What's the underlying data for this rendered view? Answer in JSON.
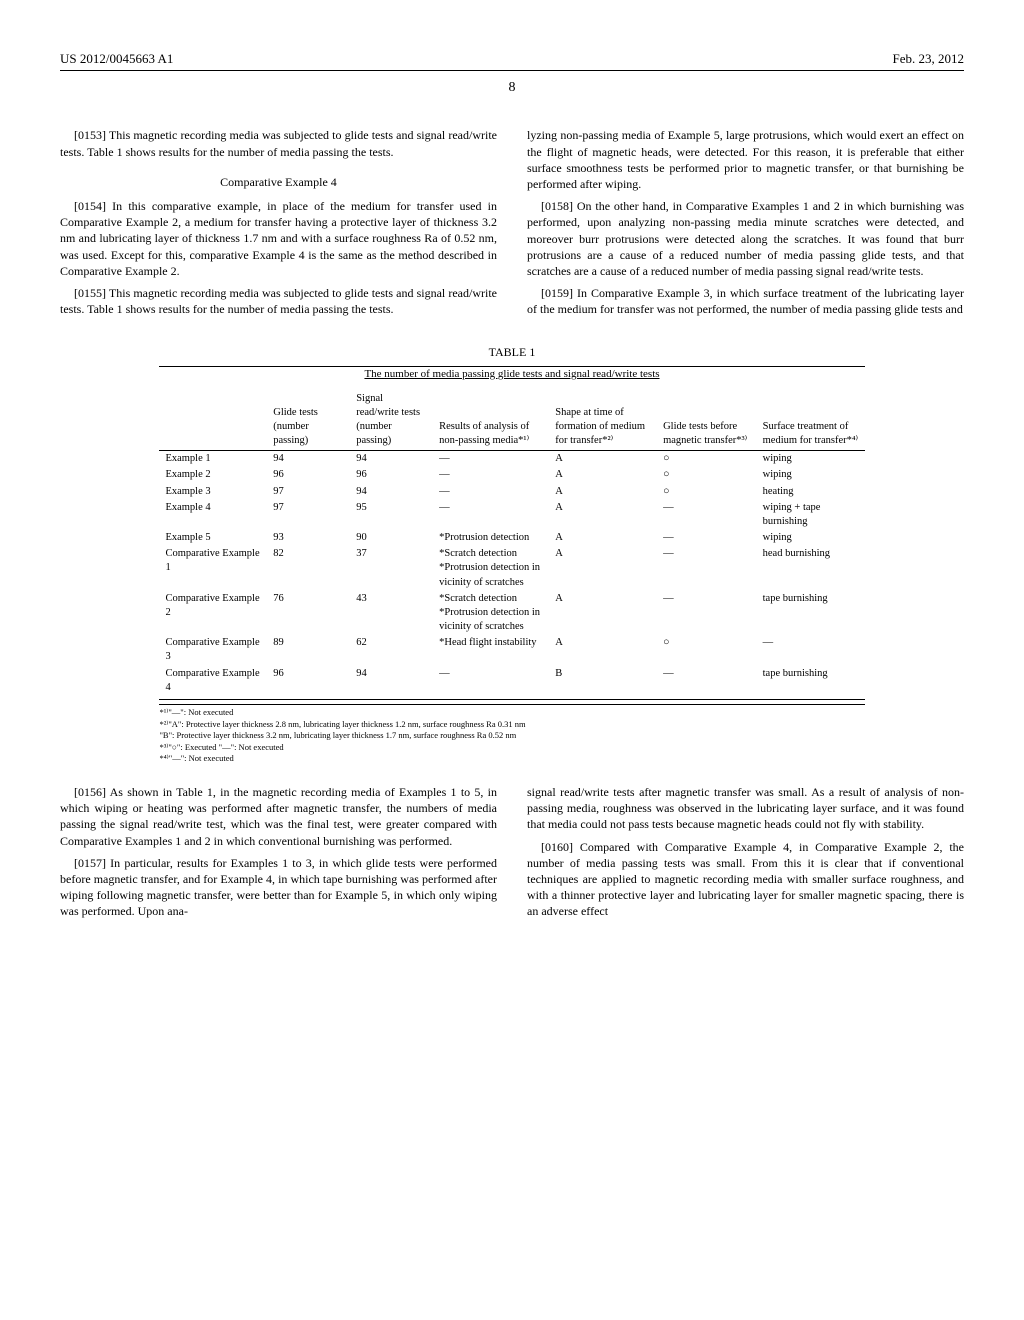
{
  "header": {
    "left": "US 2012/0045663 A1",
    "right": "Feb. 23, 2012"
  },
  "page_number": "8",
  "paragraphs": {
    "p0153": {
      "num": "[0153]",
      "text": "This magnetic recording media was subjected to glide tests and signal read/write tests. Table 1 shows results for the number of media passing the tests."
    },
    "comp4_heading": "Comparative Example 4",
    "p0154": {
      "num": "[0154]",
      "text": "In this comparative example, in place of the medium for transfer used in Comparative Example 2, a medium for transfer having a protective layer of thickness 3.2 nm and lubricating layer of thickness 1.7 nm and with a surface roughness Ra of 0.52 nm, was used. Except for this, comparative Example 4 is the same as the method described in Comparative Example 2."
    },
    "p0155": {
      "num": "[0155]",
      "text": "This magnetic recording media was subjected to glide tests and signal read/write tests. Table 1 shows results for the number of media passing the tests."
    },
    "p_right1": "lyzing non-passing media of Example 5, large protrusions, which would exert an effect on the flight of magnetic heads, were detected. For this reason, it is preferable that either surface smoothness tests be performed prior to magnetic transfer, or that burnishing be performed after wiping.",
    "p0158": {
      "num": "[0158]",
      "text": "On the other hand, in Comparative Examples 1 and 2 in which burnishing was performed, upon analyzing non-passing media minute scratches were detected, and moreover burr protrusions were detected along the scratches. It was found that burr protrusions are a cause of a reduced number of media passing glide tests, and that scratches are a cause of a reduced number of media passing signal read/write tests."
    },
    "p0159": {
      "num": "[0159]",
      "text": "In Comparative Example 3, in which surface treatment of the lubricating layer of the medium for transfer was not performed, the number of media passing glide tests and"
    },
    "p0156": {
      "num": "[0156]",
      "text": "As shown in Table 1, in the magnetic recording media of Examples 1 to 5, in which wiping or heating was performed after magnetic transfer, the numbers of media passing the signal read/write test, which was the final test, were greater compared with Comparative Examples 1 and 2 in which conventional burnishing was performed."
    },
    "p0157": {
      "num": "[0157]",
      "text": "In particular, results for Examples 1 to 3, in which glide tests were performed before magnetic transfer, and for Example 4, in which tape burnishing was performed after wiping following magnetic transfer, were better than for Example 5, in which only wiping was performed. Upon ana-"
    },
    "p_right2": "signal read/write tests after magnetic transfer was small. As a result of analysis of non-passing media, roughness was observed in the lubricating layer surface, and it was found that media could not pass tests because magnetic heads could not fly with stability.",
    "p0160": {
      "num": "[0160]",
      "text": "Compared with Comparative Example 4, in Comparative Example 2, the number of media passing tests was small. From this it is clear that if conventional techniques are applied to magnetic recording media with smaller surface roughness, and with a thinner protective layer and lubricating layer for smaller magnetic spacing, there is an adverse effect"
    }
  },
  "table": {
    "label": "TABLE 1",
    "title": "The number of media passing glide tests and signal read/write tests",
    "columns": [
      "",
      "Glide tests (number passing)",
      "Signal read/write tests (number passing)",
      "Results of analysis of non-passing media*¹⁾",
      "Shape at time of formation of medium for transfer*²⁾",
      "Glide tests before magnetic transfer*³⁾",
      "Surface treatment of medium for transfer*⁴⁾"
    ],
    "rows": [
      {
        "name": "Example 1",
        "glide": "94",
        "signal": "94",
        "analysis": "—",
        "shape": "A",
        "glide_before": "○",
        "surface": "wiping"
      },
      {
        "name": "Example 2",
        "glide": "96",
        "signal": "96",
        "analysis": "—",
        "shape": "A",
        "glide_before": "○",
        "surface": "wiping"
      },
      {
        "name": "Example 3",
        "glide": "97",
        "signal": "94",
        "analysis": "—",
        "shape": "A",
        "glide_before": "○",
        "surface": "heating"
      },
      {
        "name": "Example 4",
        "glide": "97",
        "signal": "95",
        "analysis": "—",
        "shape": "A",
        "glide_before": "—",
        "surface": "wiping + tape burnishing"
      },
      {
        "name": "Example 5",
        "glide": "93",
        "signal": "90",
        "analysis": "*Protrusion detection",
        "shape": "A",
        "glide_before": "—",
        "surface": "wiping"
      },
      {
        "name": "Comparative Example 1",
        "glide": "82",
        "signal": "37",
        "analysis": "*Scratch detection *Protrusion detection in vicinity of scratches",
        "shape": "A",
        "glide_before": "—",
        "surface": "head burnishing"
      },
      {
        "name": "Comparative Example 2",
        "glide": "76",
        "signal": "43",
        "analysis": "*Scratch detection *Protrusion detection in vicinity of scratches",
        "shape": "A",
        "glide_before": "—",
        "surface": "tape burnishing"
      },
      {
        "name": "Comparative Example 3",
        "glide": "89",
        "signal": "62",
        "analysis": "*Head flight instability",
        "shape": "A",
        "glide_before": "○",
        "surface": "—"
      },
      {
        "name": "Comparative Example 4",
        "glide": "96",
        "signal": "94",
        "analysis": "—",
        "shape": "B",
        "glide_before": "—",
        "surface": "tape burnishing"
      }
    ],
    "footnotes": [
      "*¹⁾\"—\": Not executed",
      "*²⁾\"A\": Protective layer thickness 2.8 nm, lubricating layer thickness 1.2 nm, surface roughness Ra 0.31 nm",
      "\"B\": Protective layer thickness 3.2 nm, lubricating layer thickness 1.7 nm, surface roughness Ra 0.52 nm",
      "*³⁾\"○\": Executed \"—\": Not executed",
      "*⁴⁾\"—\": Not executed"
    ]
  }
}
